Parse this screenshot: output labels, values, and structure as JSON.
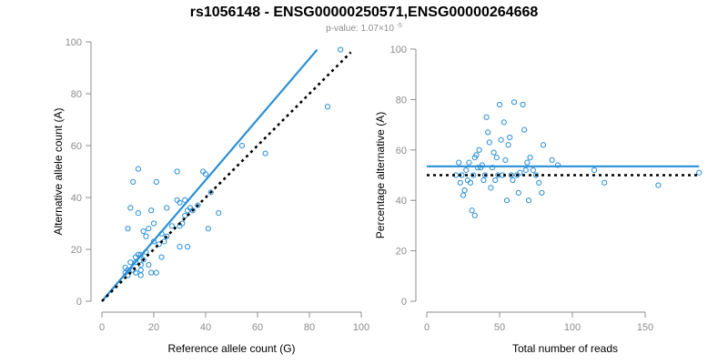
{
  "header": {
    "title": "rs1056148 - ENSG00000250571,ENSG00000264668",
    "pvalue_text": "p-value: 1.07×10",
    "pvalue_exponent": "-5"
  },
  "colors": {
    "points": "#2a8fd6",
    "fit_line": "#2a8fd6",
    "reference_line": "#000000",
    "axis": "#8c8c8c"
  },
  "chart_data": [
    {
      "type": "scatter",
      "xlabel": "Reference allele count (G)",
      "ylabel": "Alternative allele count (A)",
      "xlim": [
        0,
        100
      ],
      "ylim": [
        0,
        100
      ],
      "xticks": [
        0,
        20,
        40,
        60,
        80,
        100
      ],
      "yticks": [
        0,
        20,
        40,
        60,
        80,
        100
      ],
      "grid": false,
      "points": [
        [
          9,
          11
        ],
        [
          9,
          13
        ],
        [
          10,
          10
        ],
        [
          10,
          12
        ],
        [
          10,
          28
        ],
        [
          11,
          36
        ],
        [
          11,
          15
        ],
        [
          12,
          12
        ],
        [
          12,
          46
        ],
        [
          13,
          11
        ],
        [
          13,
          15
        ],
        [
          13,
          17
        ],
        [
          14,
          18
        ],
        [
          14,
          34
        ],
        [
          14,
          51
        ],
        [
          15,
          10
        ],
        [
          15,
          12
        ],
        [
          15,
          14
        ],
        [
          15,
          18
        ],
        [
          16,
          16
        ],
        [
          16,
          27
        ],
        [
          17,
          19
        ],
        [
          17,
          25
        ],
        [
          18,
          14
        ],
        [
          18,
          28
        ],
        [
          19,
          35
        ],
        [
          19,
          11
        ],
        [
          20,
          23
        ],
        [
          20,
          30
        ],
        [
          21,
          11
        ],
        [
          21,
          46
        ],
        [
          22,
          22
        ],
        [
          23,
          26
        ],
        [
          23,
          17
        ],
        [
          24,
          23
        ],
        [
          25,
          25
        ],
        [
          25,
          36
        ],
        [
          27,
          29
        ],
        [
          29,
          39
        ],
        [
          29,
          50
        ],
        [
          30,
          21
        ],
        [
          30,
          38
        ],
        [
          30,
          29
        ],
        [
          31,
          30
        ],
        [
          32,
          33
        ],
        [
          32,
          39
        ],
        [
          33,
          21
        ],
        [
          33,
          35
        ],
        [
          34,
          36
        ],
        [
          35,
          35
        ],
        [
          37,
          37
        ],
        [
          39,
          50
        ],
        [
          40,
          49
        ],
        [
          41,
          28
        ],
        [
          42,
          42
        ],
        [
          45,
          34
        ],
        [
          54,
          60
        ],
        [
          63,
          57
        ],
        [
          87,
          75
        ],
        [
          92,
          97
        ]
      ],
      "lines": [
        {
          "name": "fit",
          "style": "solid",
          "color": "#2a8fd6",
          "from": [
            0,
            0
          ],
          "to": [
            83,
            97
          ]
        },
        {
          "name": "reference",
          "style": "dotted",
          "color": "#000000",
          "from": [
            0,
            0
          ],
          "to": [
            96,
            96
          ]
        }
      ]
    },
    {
      "type": "scatter",
      "xlabel": "Total number of reads",
      "ylabel": "Percentage alternative (A)",
      "xlim": [
        0,
        190
      ],
      "ylim": [
        0,
        100
      ],
      "xticks": [
        0,
        50,
        100,
        150
      ],
      "yticks": [
        0,
        20,
        40,
        60,
        80,
        100
      ],
      "grid": false,
      "points": [
        [
          20,
          50
        ],
        [
          22,
          55
        ],
        [
          23,
          47
        ],
        [
          24,
          50
        ],
        [
          25,
          42
        ],
        [
          26,
          44
        ],
        [
          27,
          52
        ],
        [
          28,
          48
        ],
        [
          29,
          55
        ],
        [
          30,
          47
        ],
        [
          31,
          36
        ],
        [
          32,
          50
        ],
        [
          33,
          57
        ],
        [
          33,
          34
        ],
        [
          34,
          58
        ],
        [
          35,
          53
        ],
        [
          36,
          60
        ],
        [
          37,
          53
        ],
        [
          38,
          54
        ],
        [
          39,
          48
        ],
        [
          40,
          50
        ],
        [
          41,
          73
        ],
        [
          42,
          67
        ],
        [
          43,
          63
        ],
        [
          44,
          45
        ],
        [
          45,
          53
        ],
        [
          46,
          59
        ],
        [
          47,
          48
        ],
        [
          48,
          57
        ],
        [
          49,
          50
        ],
        [
          50,
          78
        ],
        [
          51,
          64
        ],
        [
          52,
          50
        ],
        [
          53,
          71
        ],
        [
          54,
          56
        ],
        [
          55,
          40
        ],
        [
          56,
          62
        ],
        [
          57,
          65
        ],
        [
          58,
          50
        ],
        [
          59,
          48
        ],
        [
          60,
          79
        ],
        [
          62,
          50
        ],
        [
          63,
          43
        ],
        [
          64,
          51
        ],
        [
          66,
          78
        ],
        [
          67,
          68
        ],
        [
          68,
          52
        ],
        [
          69,
          55
        ],
        [
          70,
          40
        ],
        [
          71,
          57
        ],
        [
          73,
          52
        ],
        [
          75,
          50
        ],
        [
          77,
          47
        ],
        [
          79,
          43
        ],
        [
          80,
          62
        ],
        [
          86,
          56
        ],
        [
          90,
          54
        ],
        [
          115,
          52
        ],
        [
          122,
          47
        ],
        [
          159,
          46
        ],
        [
          187,
          51
        ]
      ],
      "lines": [
        {
          "name": "fit",
          "style": "solid",
          "color": "#2a8fd6",
          "from": [
            0,
            53.5
          ],
          "to": [
            187,
            53.5
          ]
        },
        {
          "name": "reference",
          "style": "dotted",
          "color": "#000000",
          "from": [
            0,
            50
          ],
          "to": [
            187,
            50
          ]
        }
      ]
    }
  ]
}
